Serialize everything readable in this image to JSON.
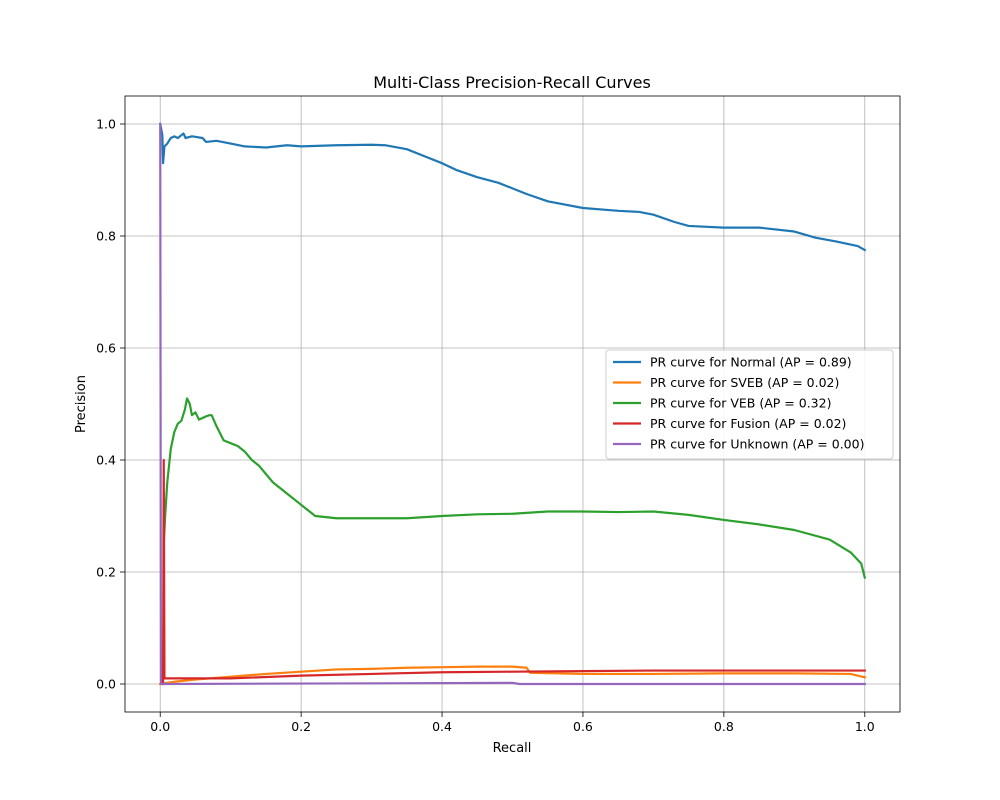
{
  "chart_data": {
    "type": "line",
    "title": "Multi-Class Precision-Recall Curves",
    "xlabel": "Recall",
    "ylabel": "Precision",
    "xlim": [
      -0.05,
      1.05
    ],
    "ylim": [
      -0.05,
      1.05
    ],
    "xticks": [
      0.0,
      0.2,
      0.4,
      0.6,
      0.8,
      1.0
    ],
    "yticks": [
      0.0,
      0.2,
      0.4,
      0.6,
      0.8,
      1.0
    ],
    "tick_labels_x": [
      "0.0",
      "0.2",
      "0.4",
      "0.6",
      "0.8",
      "1.0"
    ],
    "tick_labels_y": [
      "0.0",
      "0.2",
      "0.4",
      "0.6",
      "0.8",
      "1.0"
    ],
    "grid": true,
    "legend_position": "center-right",
    "series": [
      {
        "name": "PR curve for Normal (AP = 0.89)",
        "color": "#1f77b4",
        "points": [
          [
            0,
            1.0
          ],
          [
            0.003,
            0.98
          ],
          [
            0.004,
            0.93
          ],
          [
            0.006,
            0.96
          ],
          [
            0.01,
            0.965
          ],
          [
            0.015,
            0.975
          ],
          [
            0.02,
            0.978
          ],
          [
            0.025,
            0.975
          ],
          [
            0.03,
            0.98
          ],
          [
            0.033,
            0.983
          ],
          [
            0.036,
            0.975
          ],
          [
            0.045,
            0.978
          ],
          [
            0.06,
            0.975
          ],
          [
            0.065,
            0.968
          ],
          [
            0.08,
            0.97
          ],
          [
            0.1,
            0.965
          ],
          [
            0.12,
            0.96
          ],
          [
            0.15,
            0.958
          ],
          [
            0.18,
            0.962
          ],
          [
            0.2,
            0.96
          ],
          [
            0.25,
            0.962
          ],
          [
            0.3,
            0.963
          ],
          [
            0.32,
            0.962
          ],
          [
            0.35,
            0.955
          ],
          [
            0.38,
            0.94
          ],
          [
            0.4,
            0.93
          ],
          [
            0.42,
            0.918
          ],
          [
            0.45,
            0.905
          ],
          [
            0.48,
            0.895
          ],
          [
            0.5,
            0.885
          ],
          [
            0.52,
            0.875
          ],
          [
            0.55,
            0.862
          ],
          [
            0.6,
            0.85
          ],
          [
            0.65,
            0.845
          ],
          [
            0.68,
            0.843
          ],
          [
            0.7,
            0.838
          ],
          [
            0.73,
            0.825
          ],
          [
            0.75,
            0.818
          ],
          [
            0.8,
            0.815
          ],
          [
            0.85,
            0.815
          ],
          [
            0.9,
            0.808
          ],
          [
            0.93,
            0.797
          ],
          [
            0.96,
            0.79
          ],
          [
            0.99,
            0.782
          ],
          [
            1.0,
            0.775
          ]
        ]
      },
      {
        "name": "PR curve for SVEB (AP = 0.02)",
        "color": "#ff7f0e",
        "points": [
          [
            0,
            0.0
          ],
          [
            0.02,
            0.004
          ],
          [
            0.05,
            0.008
          ],
          [
            0.1,
            0.013
          ],
          [
            0.15,
            0.018
          ],
          [
            0.2,
            0.022
          ],
          [
            0.25,
            0.026
          ],
          [
            0.3,
            0.027
          ],
          [
            0.35,
            0.029
          ],
          [
            0.4,
            0.03
          ],
          [
            0.45,
            0.031
          ],
          [
            0.5,
            0.031
          ],
          [
            0.52,
            0.029
          ],
          [
            0.525,
            0.02
          ],
          [
            0.6,
            0.018
          ],
          [
            0.7,
            0.018
          ],
          [
            0.8,
            0.019
          ],
          [
            0.9,
            0.019
          ],
          [
            0.98,
            0.018
          ],
          [
            1.0,
            0.012
          ]
        ]
      },
      {
        "name": "PR curve for VEB (AP = 0.32)",
        "color": "#2ca02c",
        "points": [
          [
            0.005,
            0.25
          ],
          [
            0.007,
            0.3
          ],
          [
            0.01,
            0.36
          ],
          [
            0.015,
            0.42
          ],
          [
            0.02,
            0.45
          ],
          [
            0.025,
            0.465
          ],
          [
            0.03,
            0.47
          ],
          [
            0.035,
            0.49
          ],
          [
            0.038,
            0.51
          ],
          [
            0.042,
            0.5
          ],
          [
            0.045,
            0.48
          ],
          [
            0.05,
            0.485
          ],
          [
            0.055,
            0.472
          ],
          [
            0.06,
            0.475
          ],
          [
            0.065,
            0.478
          ],
          [
            0.07,
            0.48
          ],
          [
            0.073,
            0.48
          ],
          [
            0.08,
            0.46
          ],
          [
            0.09,
            0.435
          ],
          [
            0.1,
            0.43
          ],
          [
            0.11,
            0.425
          ],
          [
            0.12,
            0.415
          ],
          [
            0.13,
            0.4
          ],
          [
            0.14,
            0.39
          ],
          [
            0.15,
            0.375
          ],
          [
            0.16,
            0.36
          ],
          [
            0.18,
            0.34
          ],
          [
            0.2,
            0.32
          ],
          [
            0.22,
            0.3
          ],
          [
            0.25,
            0.296
          ],
          [
            0.3,
            0.296
          ],
          [
            0.35,
            0.296
          ],
          [
            0.4,
            0.3
          ],
          [
            0.45,
            0.303
          ],
          [
            0.5,
            0.304
          ],
          [
            0.55,
            0.308
          ],
          [
            0.6,
            0.308
          ],
          [
            0.65,
            0.307
          ],
          [
            0.7,
            0.308
          ],
          [
            0.75,
            0.302
          ],
          [
            0.8,
            0.293
          ],
          [
            0.85,
            0.285
          ],
          [
            0.9,
            0.275
          ],
          [
            0.95,
            0.258
          ],
          [
            0.98,
            0.235
          ],
          [
            0.995,
            0.215
          ],
          [
            1.0,
            0.19
          ]
        ]
      },
      {
        "name": "PR curve for Fusion (AP = 0.02)",
        "color": "#d62728",
        "points": [
          [
            0.004,
            0.0
          ],
          [
            0.005,
            0.4
          ],
          [
            0.006,
            0.01
          ],
          [
            0.1,
            0.01
          ],
          [
            0.2,
            0.015
          ],
          [
            0.3,
            0.018
          ],
          [
            0.4,
            0.021
          ],
          [
            0.5,
            0.022
          ],
          [
            0.6,
            0.023
          ],
          [
            0.7,
            0.024
          ],
          [
            0.8,
            0.024
          ],
          [
            0.9,
            0.024
          ],
          [
            1.0,
            0.024
          ]
        ]
      },
      {
        "name": "PR curve for Unknown (AP = 0.00)",
        "color": "#9467bd",
        "points": [
          [
            0.0,
            1.0
          ],
          [
            0.001,
            0.0
          ],
          [
            0.5,
            0.002
          ],
          [
            0.51,
            0.0
          ],
          [
            1.0,
            0.0
          ]
        ]
      }
    ]
  }
}
